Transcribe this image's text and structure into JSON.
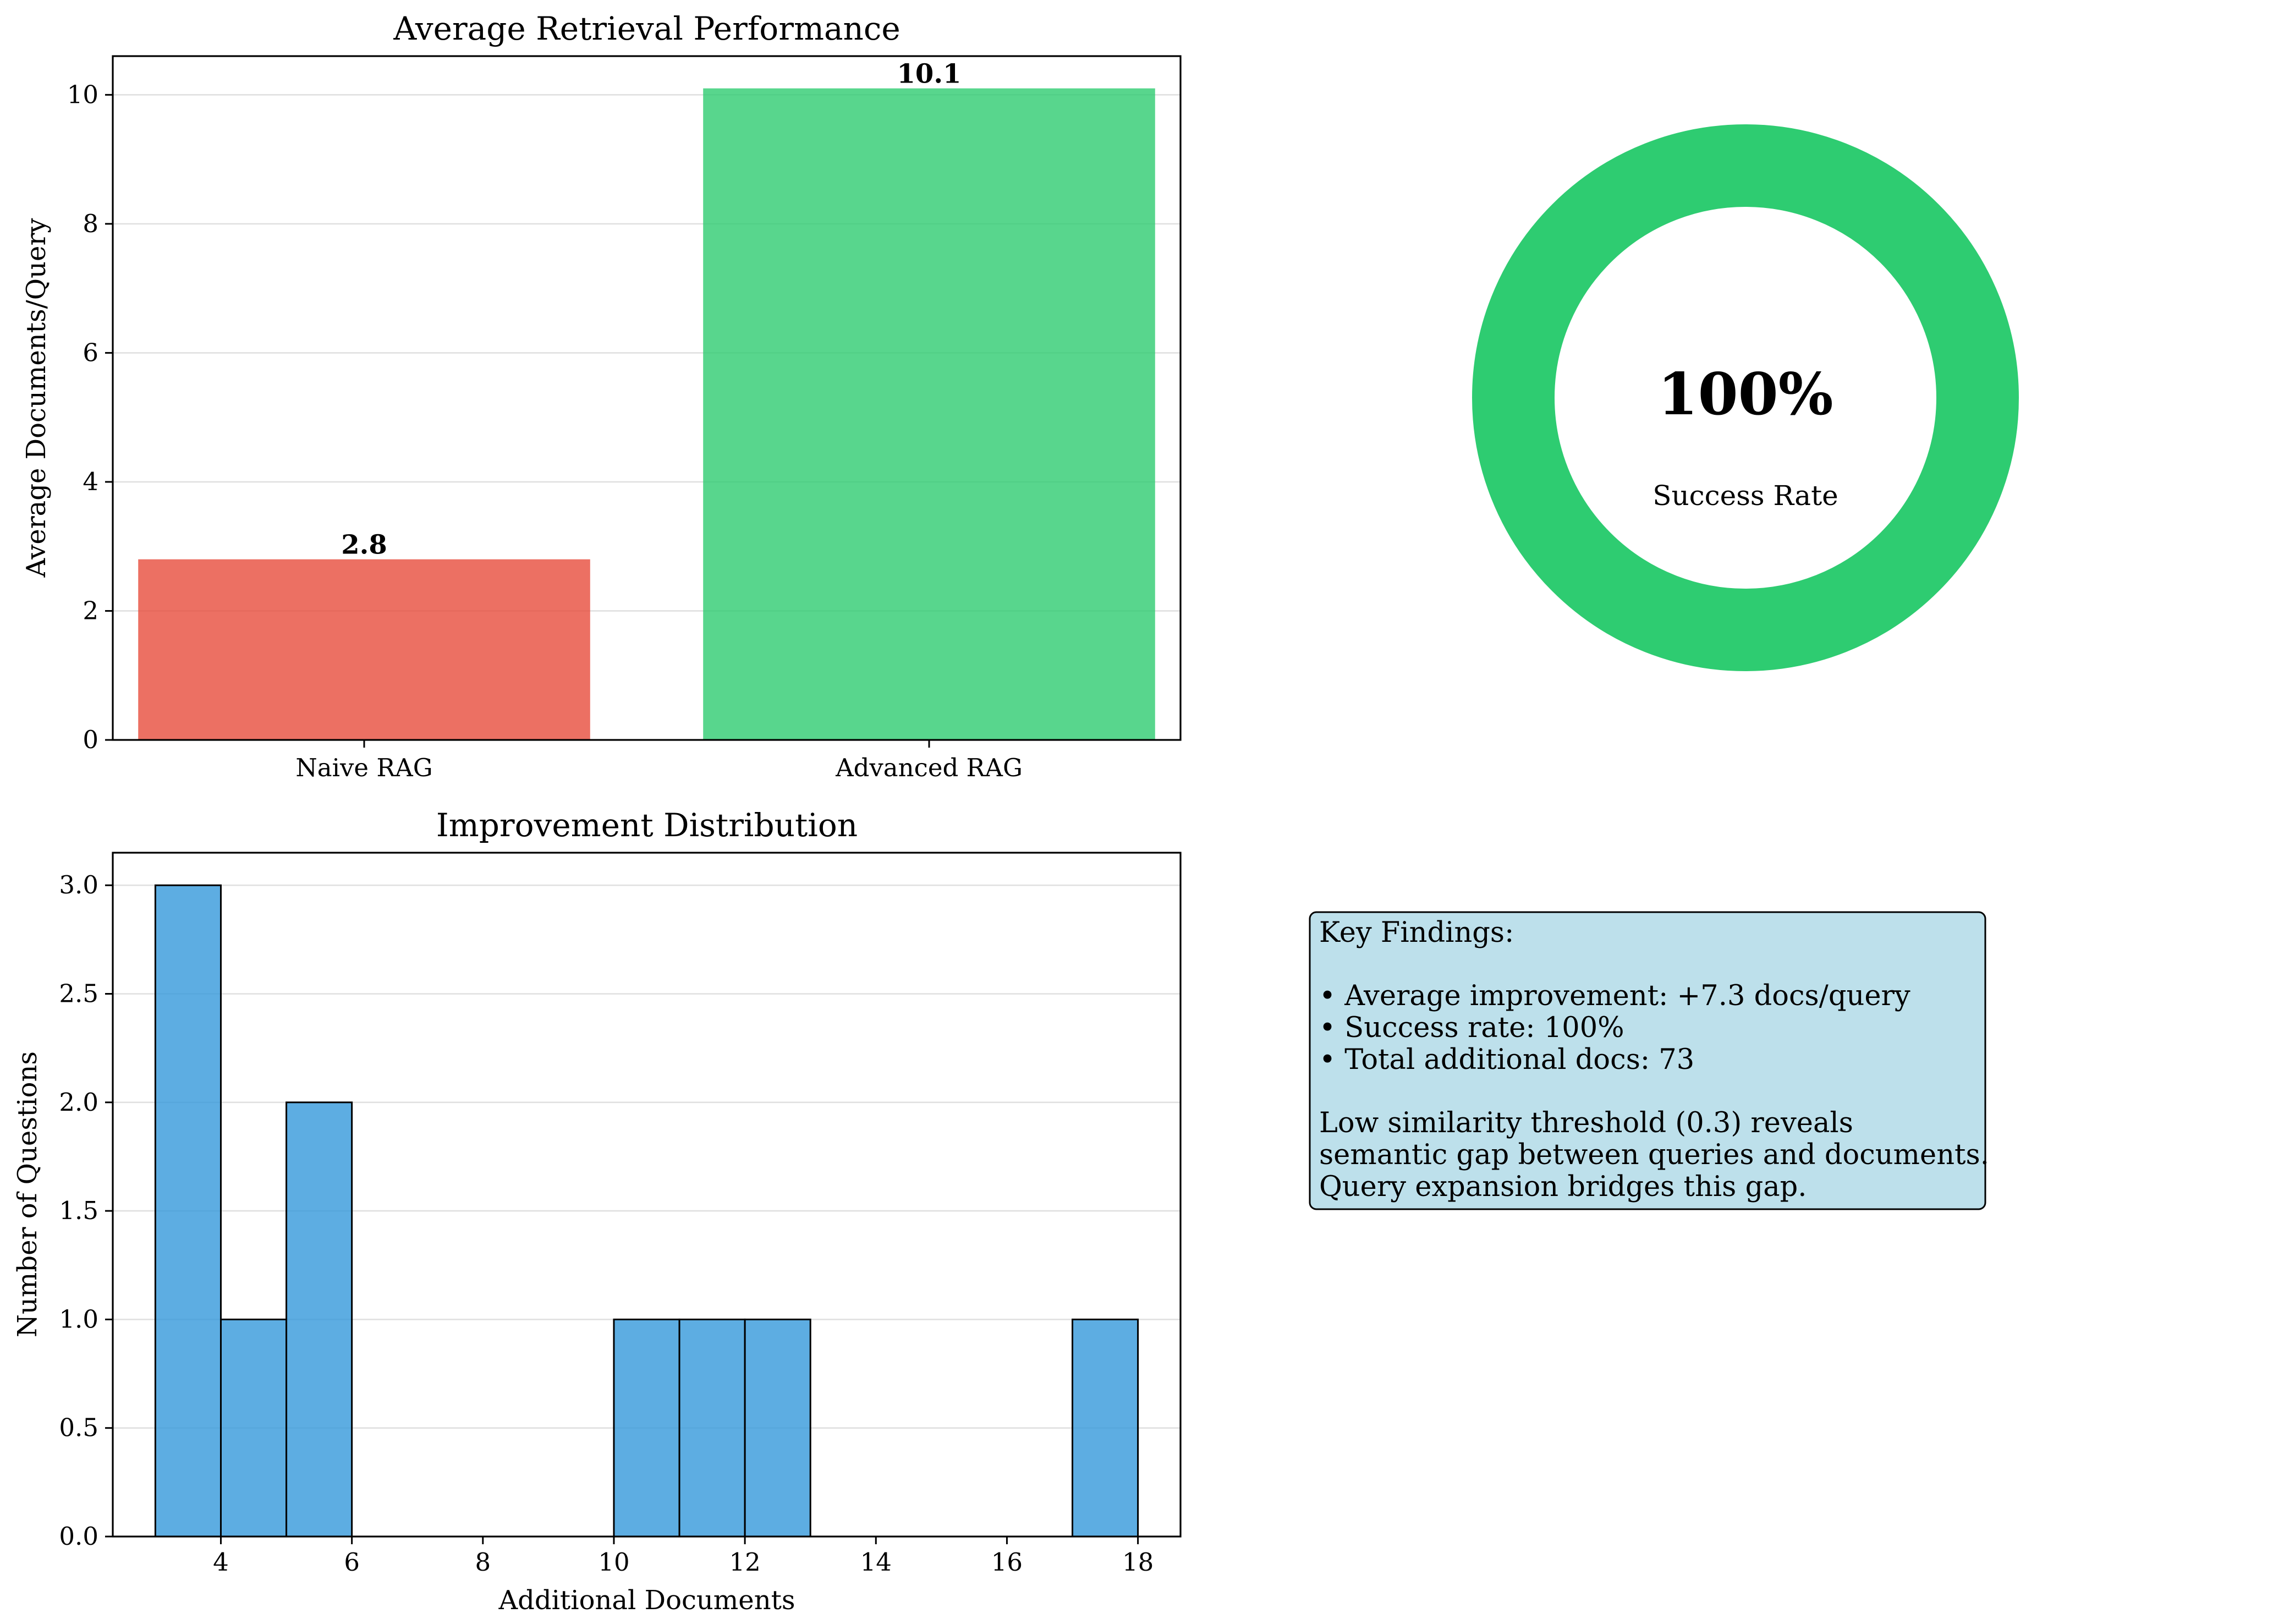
{
  "chart_data": [
    {
      "type": "bar",
      "title": "Average Retrieval Performance",
      "xlabel": "",
      "ylabel": "Average Documents/Query",
      "categories": [
        "Naive RAG",
        "Advanced RAG"
      ],
      "values": [
        2.8,
        10.1
      ],
      "value_labels": [
        "2.8",
        "10.1"
      ],
      "colors": [
        "#e74c3c",
        "#2ecc71"
      ],
      "ylim": [
        0,
        10.6
      ],
      "yticks": [
        0,
        2,
        4,
        6,
        8,
        10
      ],
      "ytick_labels": [
        "0",
        "2",
        "4",
        "6",
        "8",
        "10"
      ],
      "grid": true
    },
    {
      "type": "pie",
      "style": "donut",
      "center_label": "100%",
      "sub_label": "Success Rate",
      "values": [
        100
      ],
      "colors": [
        "#2ecc71"
      ]
    },
    {
      "type": "bar",
      "subtype": "histogram",
      "title": "Improvement Distribution",
      "xlabel": "Additional Documents",
      "ylabel": "Number of Questions",
      "bins": [
        {
          "start": 3,
          "end": 4,
          "count": 3
        },
        {
          "start": 4,
          "end": 5,
          "count": 1
        },
        {
          "start": 5,
          "end": 6,
          "count": 2
        },
        {
          "start": 6,
          "end": 7,
          "count": 0
        },
        {
          "start": 7,
          "end": 8,
          "count": 0
        },
        {
          "start": 8,
          "end": 9,
          "count": 0
        },
        {
          "start": 9,
          "end": 10,
          "count": 0
        },
        {
          "start": 10,
          "end": 11,
          "count": 1
        },
        {
          "start": 11,
          "end": 12,
          "count": 1
        },
        {
          "start": 12,
          "end": 13,
          "count": 1
        },
        {
          "start": 13,
          "end": 14,
          "count": 0
        },
        {
          "start": 14,
          "end": 15,
          "count": 0
        },
        {
          "start": 15,
          "end": 16,
          "count": 0
        },
        {
          "start": 16,
          "end": 17,
          "count": 0
        },
        {
          "start": 17,
          "end": 18,
          "count": 1
        }
      ],
      "color": "#3498db",
      "xlim": [
        2.35,
        18.65
      ],
      "ylim": [
        0,
        3.15
      ],
      "xticks": [
        4,
        6,
        8,
        10,
        12,
        14,
        16,
        18
      ],
      "xtick_labels": [
        "4",
        "6",
        "8",
        "10",
        "12",
        "14",
        "16",
        "18"
      ],
      "yticks": [
        0,
        0.5,
        1.0,
        1.5,
        2.0,
        2.5,
        3.0
      ],
      "ytick_labels": [
        "0.0",
        "0.5",
        "1.0",
        "1.5",
        "2.0",
        "2.5",
        "3.0"
      ],
      "grid": true
    }
  ],
  "findings": {
    "lines": [
      "Key Findings:",
      "",
      "• Average improvement: +7.3 docs/query",
      "• Success rate: 100%",
      "• Total additional docs: 73",
      "",
      "Low similarity threshold (0.3) reveals",
      "semantic gap between queries and documents.",
      "Query expansion bridges this gap."
    ],
    "background": "#add8e6"
  }
}
